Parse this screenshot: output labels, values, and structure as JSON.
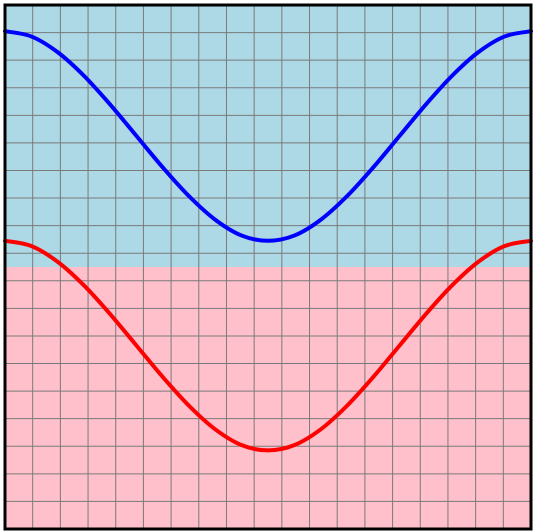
{
  "chart_data": {
    "type": "line",
    "title": "",
    "xlabel": "",
    "ylabel": "",
    "xlim": [
      0,
      1
    ],
    "ylim": [
      -1,
      1
    ],
    "grid": true,
    "grid_divisions": {
      "x": 19,
      "y": 19
    },
    "regions": [
      {
        "name": "upper-region",
        "y_range": [
          0,
          1
        ],
        "color": "#add8e6"
      },
      {
        "name": "lower-region",
        "y_range": [
          -1,
          0
        ],
        "color": "#ffc0cb"
      }
    ],
    "series": [
      {
        "color": "#0000ff",
        "x": [
          0,
          0.05,
          0.1,
          0.15,
          0.2,
          0.25,
          0.3,
          0.35,
          0.4,
          0.45,
          0.5,
          0.55,
          0.6,
          0.65,
          0.7,
          0.75,
          0.8,
          0.85,
          0.9,
          0.95,
          1
        ],
        "y": [
          0.9,
          0.88,
          0.82,
          0.73,
          0.62,
          0.5,
          0.38,
          0.27,
          0.18,
          0.12,
          0.1,
          0.12,
          0.18,
          0.27,
          0.38,
          0.5,
          0.62,
          0.73,
          0.82,
          0.88,
          0.9
        ]
      },
      {
        "color": "#ff0000",
        "x": [
          0,
          0.05,
          0.1,
          0.15,
          0.2,
          0.25,
          0.3,
          0.35,
          0.4,
          0.45,
          0.5,
          0.55,
          0.6,
          0.65,
          0.7,
          0.75,
          0.8,
          0.85,
          0.9,
          0.95,
          1
        ],
        "y": [
          0.1,
          0.08,
          0.02,
          -0.07,
          -0.18,
          -0.3,
          -0.42,
          -0.53,
          -0.62,
          -0.68,
          -0.7,
          -0.68,
          -0.62,
          -0.53,
          -0.42,
          -0.3,
          -0.18,
          -0.07,
          0.02,
          0.08,
          0.1
        ]
      }
    ]
  }
}
